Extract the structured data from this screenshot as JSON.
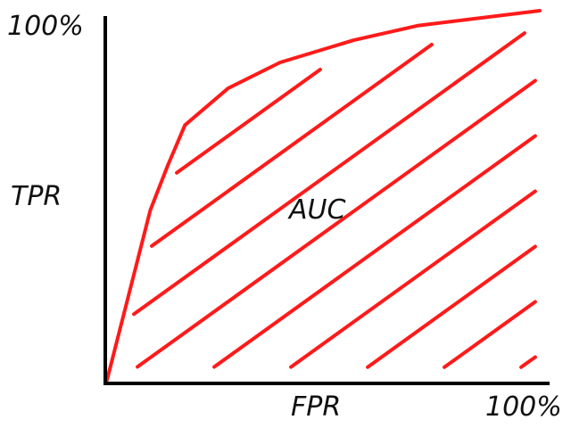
{
  "chart_data": {
    "type": "area",
    "title": "",
    "xlabel": "FPR",
    "ylabel": "TPR",
    "xlim": [
      0,
      100
    ],
    "ylim": [
      0,
      100
    ],
    "x_tick_labels": [
      "100%"
    ],
    "y_tick_labels": [
      "100%"
    ],
    "annotation": "AUC",
    "grid": false,
    "fill_style": "diagonal hatching",
    "colors": {
      "curve": "#ff1a1a",
      "hatch": "#ff1a1a",
      "axes": "#000000"
    },
    "series": [
      {
        "x": [
          0,
          10,
          14,
          18,
          28,
          40,
          57,
          72,
          100
        ],
        "y": [
          0,
          46,
          58,
          69,
          79,
          86,
          92,
          96,
          100
        ]
      }
    ]
  }
}
